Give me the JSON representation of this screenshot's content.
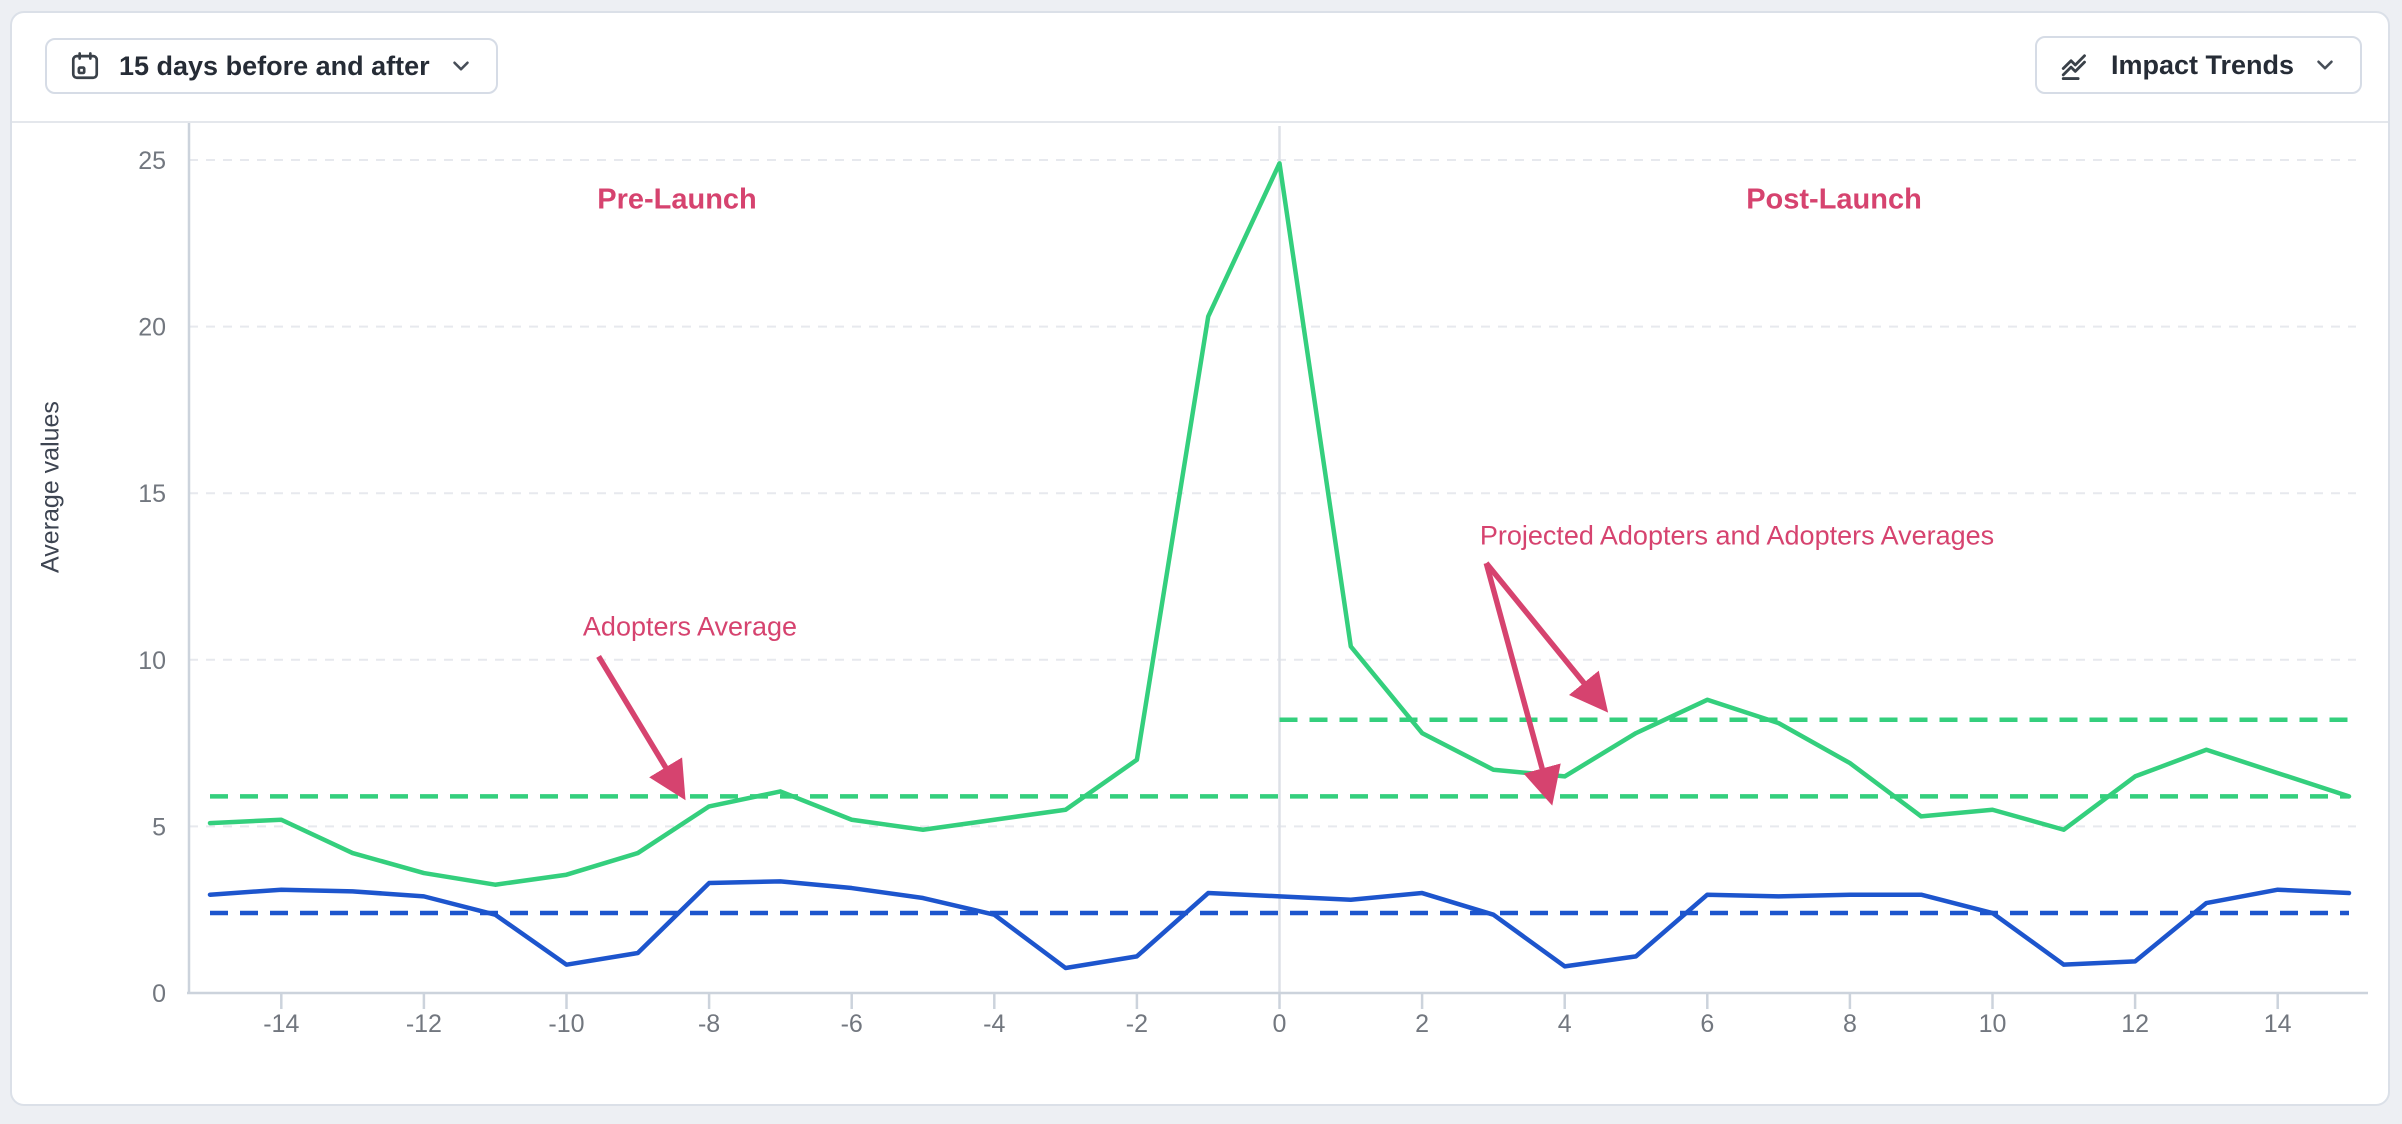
{
  "toolbar": {
    "date_range_button": {
      "label": "15 days before and after",
      "icon": "calendar-icon"
    },
    "trends_button": {
      "label": "Impact Trends",
      "icon": "line-chart-icon"
    }
  },
  "chart_data": {
    "type": "line",
    "title": "",
    "xlabel": "",
    "ylabel": "Average values",
    "x_range": [
      -15,
      15
    ],
    "ylim": [
      0,
      25
    ],
    "x_ticks": [
      -14,
      -12,
      -10,
      -8,
      -6,
      -4,
      -2,
      0,
      2,
      4,
      6,
      8,
      10,
      12,
      14
    ],
    "y_ticks": [
      0,
      5,
      10,
      15,
      20,
      25
    ],
    "grid": "horizontal-dashed",
    "legend": "none",
    "launch_line_x": 0,
    "x": [
      -15,
      -14,
      -13,
      -12,
      -11,
      -10,
      -9,
      -8,
      -7,
      -6,
      -5,
      -4,
      -3,
      -2,
      -1,
      0,
      1,
      2,
      3,
      4,
      5,
      6,
      7,
      8,
      9,
      10,
      11,
      12,
      13,
      14,
      15
    ],
    "series": [
      {
        "name": "Adopters",
        "color": "#34cf7d",
        "style": "solid",
        "values": [
          5.1,
          5.2,
          4.2,
          3.6,
          3.25,
          3.55,
          4.2,
          5.6,
          6.05,
          5.2,
          4.9,
          5.2,
          5.5,
          7.0,
          20.3,
          24.9,
          10.4,
          7.8,
          6.7,
          6.5,
          7.8,
          8.8,
          8.1,
          6.9,
          5.3,
          5.5,
          4.9,
          6.5,
          7.3,
          6.6,
          5.9
        ]
      },
      {
        "name": "comparison-blue-series",
        "color": "#1d55cd",
        "style": "solid",
        "values": [
          2.95,
          3.1,
          3.05,
          2.9,
          2.35,
          0.85,
          1.2,
          3.3,
          3.35,
          3.15,
          2.85,
          2.35,
          0.75,
          1.1,
          3.0,
          2.9,
          2.8,
          3.0,
          2.35,
          0.8,
          1.1,
          2.95,
          2.9,
          2.95,
          2.95,
          2.4,
          0.85,
          0.95,
          2.7,
          3.1,
          3.0
        ]
      }
    ],
    "reference_lines": [
      {
        "name": "adopters-average",
        "value": 5.9,
        "color": "#34cf7d",
        "style": "dashed",
        "span": [
          -15,
          15
        ]
      },
      {
        "name": "projected-adopters-average",
        "value": 8.2,
        "color": "#34cf7d",
        "style": "dashed",
        "span": [
          0,
          15
        ]
      },
      {
        "name": "comparison-average",
        "value": 2.4,
        "color": "#1d55cd",
        "style": "dashed",
        "span": [
          -15,
          15
        ]
      }
    ],
    "annotation_color": "#d6436f",
    "annotations": {
      "pre_launch": "Pre-Launch",
      "post_launch": "Post-Launch",
      "adopters_average": "Adopters Average",
      "projected_averages": "Projected Adopters and Adopters Averages"
    },
    "arrows": [
      {
        "from": [
          -9.55,
          10.1
        ],
        "to": [
          -8.42,
          6.1
        ]
      },
      {
        "from": [
          2.9,
          12.9
        ],
        "to": [
          4.5,
          8.7
        ]
      },
      {
        "from": [
          2.9,
          12.9
        ],
        "to": [
          3.78,
          5.98
        ]
      }
    ]
  }
}
